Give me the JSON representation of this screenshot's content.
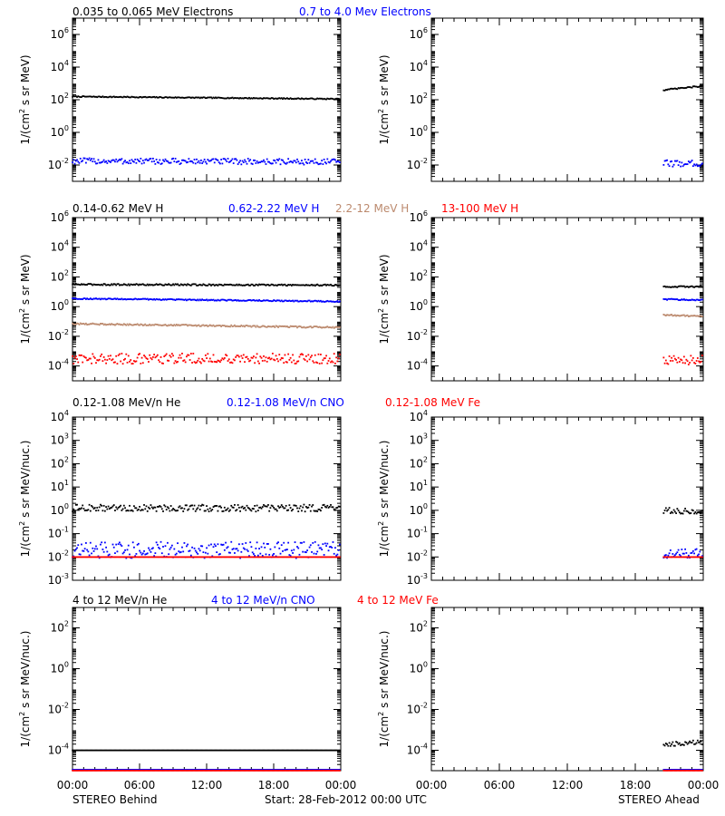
{
  "chart_data": {
    "type": "scatter",
    "x_tick_labels": [
      "00:00",
      "06:00",
      "12:00",
      "18:00",
      "00:00"
    ],
    "footer": {
      "left": "STEREO Behind",
      "center": "Start: 28-Feb-2012 00:00 UTC",
      "right": "STEREO Ahead"
    },
    "panels": [
      {
        "ylabel_left": "1/(cm",
        "ylabel_sup": "2",
        "ylabel_right": " s sr MeV)",
        "ytick_exponents": [
          -2,
          0,
          2,
          4,
          6
        ],
        "ylim_log10": [
          -3,
          7
        ],
        "series": [
          {
            "name": "0.035 to 0.065 MeV Electrons",
            "color": "#000000",
            "behind": {
              "log10_start": 2.2,
              "log10_end": 2.05,
              "scatter": 0.03
            },
            "ahead": {
              "x_start_hours": 20.5,
              "log10_start": 2.6,
              "log10_end": 2.85,
              "scatter": 0.04
            }
          },
          {
            "name": "0.7 to 4.0 Mev Electrons",
            "color": "#0000ff",
            "behind": {
              "log10_start": -1.75,
              "log10_end": -1.8,
              "scatter": 0.18
            },
            "ahead": {
              "x_start_hours": 20.5,
              "log10_start": -1.9,
              "log10_end": -1.9,
              "scatter": 0.2
            }
          }
        ]
      },
      {
        "ylabel_left": "1/(cm",
        "ylabel_sup": "2",
        "ylabel_right": " s sr MeV)",
        "ytick_exponents": [
          -4,
          -2,
          0,
          2,
          4,
          6
        ],
        "ylim_log10": [
          -5,
          6
        ],
        "series": [
          {
            "name": "0.14-0.62 MeV H",
            "color": "#000000",
            "behind": {
              "log10_start": 1.5,
              "log10_end": 1.45,
              "scatter": 0.05
            },
            "ahead": {
              "x_start_hours": 20.5,
              "log10_start": 1.35,
              "log10_end": 1.35,
              "scatter": 0.04
            }
          },
          {
            "name": "0.62-2.22 MeV H",
            "color": "#0000ff",
            "behind": {
              "log10_start": 0.55,
              "log10_end": 0.35,
              "scatter": 0.04
            },
            "ahead": {
              "x_start_hours": 20.5,
              "log10_start": 0.5,
              "log10_end": 0.45,
              "scatter": 0.04
            }
          },
          {
            "name": "2.2-12 MeV H",
            "color": "#bc8a6e",
            "behind": {
              "log10_start": -1.15,
              "log10_end": -1.4,
              "scatter": 0.05
            },
            "ahead": {
              "x_start_hours": 20.5,
              "log10_start": -0.55,
              "log10_end": -0.65,
              "scatter": 0.05
            }
          },
          {
            "name": "13-100 MeV H",
            "color": "#ff0000",
            "behind": {
              "log10_start": -3.5,
              "log10_end": -3.5,
              "scatter": 0.35
            },
            "ahead": {
              "x_start_hours": 20.5,
              "log10_start": -3.6,
              "log10_end": -3.6,
              "scatter": 0.35
            }
          }
        ]
      },
      {
        "ylabel_left": "1/(cm",
        "ylabel_sup": "2",
        "ylabel_right": " s sr MeV/nuc.)",
        "ytick_exponents": [
          -3,
          -2,
          -1,
          0,
          1,
          2,
          3,
          4
        ],
        "ylim_log10": [
          -3,
          4
        ],
        "series": [
          {
            "name": "0.12-1.08 MeV/n He",
            "color": "#000000",
            "behind": {
              "log10_start": 0.1,
              "log10_end": 0.1,
              "scatter": 0.15
            },
            "ahead": {
              "x_start_hours": 20.5,
              "log10_start": 0.0,
              "log10_end": -0.05,
              "scatter": 0.12
            }
          },
          {
            "name": "0.12-1.08 MeV/n CNO",
            "color": "#0000ff",
            "behind": {
              "log10_start": -1.7,
              "log10_end": -1.7,
              "scatter": 0.35
            },
            "ahead": {
              "x_start_hours": 20.5,
              "log10_start": -1.85,
              "log10_end": -1.85,
              "scatter": 0.2
            }
          },
          {
            "name": "0.12-1.08 MeV Fe",
            "color": "#ff0000",
            "behind": {
              "log10_start": -2.0,
              "log10_end": -2.0,
              "scatter": 0.0
            },
            "ahead": {
              "x_start_hours": 20.5,
              "log10_start": -2.0,
              "log10_end": -2.0,
              "scatter": 0.0
            }
          }
        ]
      },
      {
        "ylabel_left": "1/(cm",
        "ylabel_sup": "2",
        "ylabel_right": " s sr MeV/nuc.)",
        "ytick_exponents": [
          -4,
          -2,
          0,
          2
        ],
        "ylim_log10": [
          -5,
          3
        ],
        "series": [
          {
            "name": "4 to 12 MeV/n He",
            "color": "#000000",
            "behind": {
              "log10_start": -4.0,
              "log10_end": -4.0,
              "scatter": 0.0
            },
            "ahead": {
              "x_start_hours": 20.5,
              "log10_start": -3.7,
              "log10_end": -3.6,
              "scatter": 0.12
            }
          },
          {
            "name": "4 to 12 MeV/n CNO",
            "color": "#0000ff",
            "behind": {
              "log10_start": -4.95,
              "log10_end": -4.95,
              "scatter": 0.0
            },
            "ahead": {
              "x_start_hours": 20.5,
              "log10_start": -4.95,
              "log10_end": -4.95,
              "scatter": 0.0
            }
          },
          {
            "name": "4 to 12 MeV Fe",
            "color": "#ff0000",
            "behind": {
              "log10_start": -4.99,
              "log10_end": -4.99,
              "scatter": 0.0
            },
            "ahead": {
              "x_start_hours": 20.5,
              "log10_start": -4.99,
              "log10_end": -4.99,
              "scatter": 0.0
            }
          }
        ]
      }
    ]
  }
}
